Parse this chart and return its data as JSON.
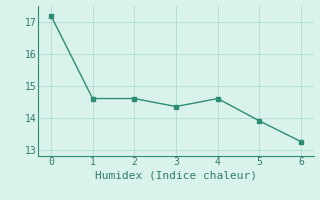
{
  "x": [
    0,
    1,
    2,
    3,
    4,
    5,
    6
  ],
  "y": [
    17.2,
    14.6,
    14.6,
    14.35,
    14.6,
    13.9,
    13.25
  ],
  "line_color": "#2e8b74",
  "marker": "s",
  "marker_size": 2.5,
  "xlabel": "Humidex (Indice chaleur)",
  "ylim": [
    12.8,
    17.5
  ],
  "xlim": [
    -0.3,
    6.3
  ],
  "yticks": [
    13,
    14,
    15,
    16,
    17
  ],
  "xticks": [
    0,
    1,
    2,
    3,
    4,
    5,
    6
  ],
  "bg_color": "#daf2ec",
  "grid_color": "#b5ddd6",
  "font_color": "#2e7b6a",
  "xlabel_fontsize": 8,
  "tick_fontsize": 7,
  "linewidth": 1.0
}
